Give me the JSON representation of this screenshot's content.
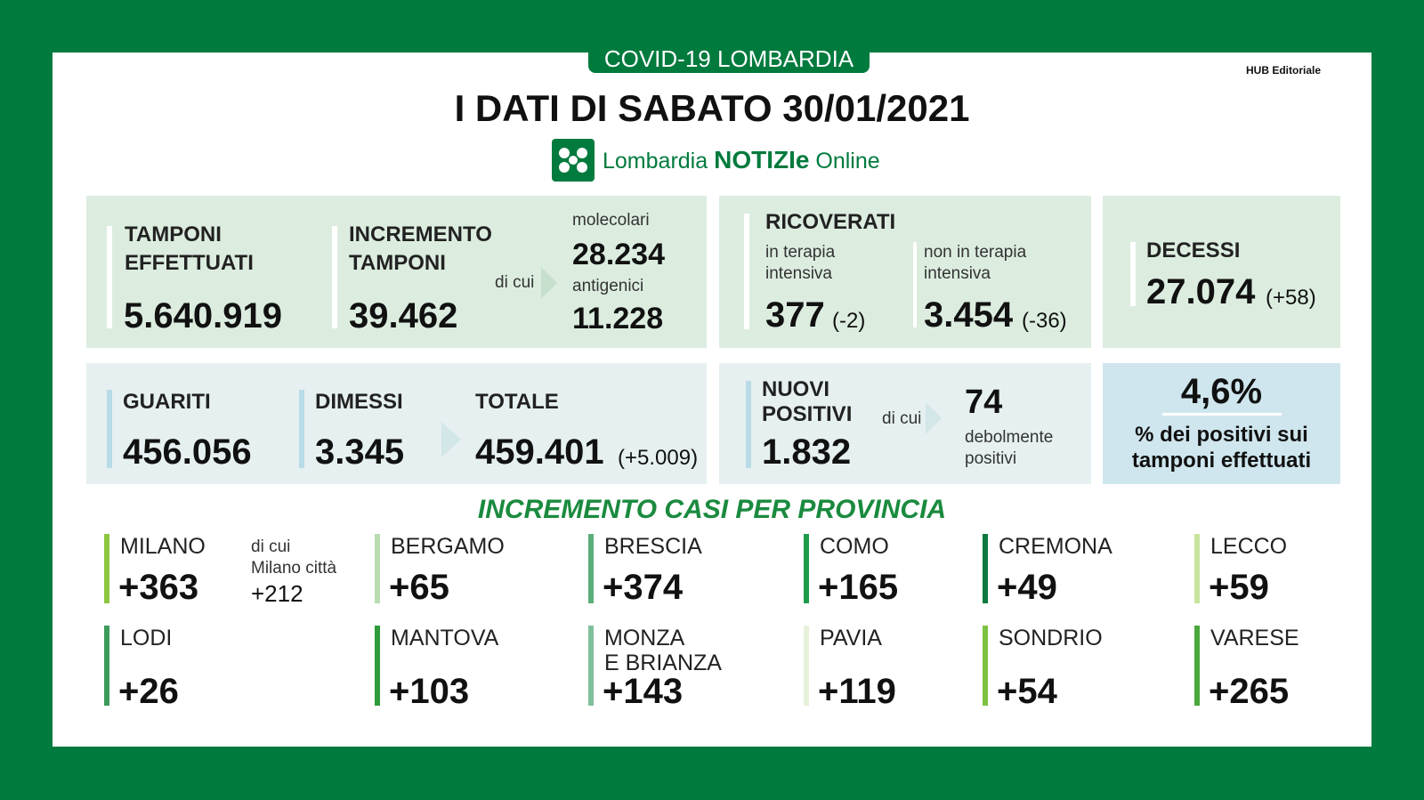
{
  "header": {
    "badge": "COVID-19 LOMBARDIA",
    "title": "I DATI DI SABATO 30/01/2021",
    "credit": "HUB Editoriale",
    "logo": {
      "brand": "Lombardia",
      "notizie": "NOTIZIe",
      "online": "Online"
    }
  },
  "tamponi": {
    "label": [
      "TAMPONI",
      "EFFETTUATI"
    ],
    "value": "5.640.919"
  },
  "incremento": {
    "label": [
      "INCREMENTO",
      "TAMPONI"
    ],
    "value": "39.462",
    "di_cui": "di cui",
    "molecolari_label": "molecolari",
    "molecolari": "28.234",
    "antigenici_label": "antigenici",
    "antigenici": "11.228"
  },
  "ricoverati": {
    "label": "RICOVERATI",
    "terapia_intensiva": {
      "label": [
        "in terapia",
        "intensiva"
      ],
      "value": "377",
      "delta": "(-2)"
    },
    "non_terapia": {
      "label": [
        "non in terapia",
        "intensiva"
      ],
      "value": "3.454",
      "delta": "(-36)"
    }
  },
  "decessi": {
    "label": "DECESSI",
    "value": "27.074",
    "delta": "(+58)"
  },
  "guariti": {
    "label": "GUARITI",
    "value": "456.056"
  },
  "dimessi": {
    "label": "DIMESSI",
    "value": "3.345"
  },
  "totale": {
    "label": "TOTALE",
    "value": "459.401",
    "delta": "(+5.009)"
  },
  "nuovi_positivi": {
    "label": [
      "NUOVI",
      "POSITIVI"
    ],
    "value": "1.832",
    "di_cui": "di cui",
    "deboli": "74",
    "deboli_label": [
      "debolmente",
      "positivi"
    ]
  },
  "percentuale": {
    "value": "4,6%",
    "label": [
      "% dei positivi sui",
      "tamponi effettuati"
    ]
  },
  "province": {
    "title": "INCREMENTO CASI PER PROVINCIA",
    "milano_extra": {
      "label": [
        "di cui",
        "Milano città"
      ],
      "value": "+212"
    },
    "items": [
      {
        "name": "MILANO",
        "value": "+363"
      },
      {
        "name": "BERGAMO",
        "value": "+65"
      },
      {
        "name": "BRESCIA",
        "value": "+374"
      },
      {
        "name": "COMO",
        "value": "+165"
      },
      {
        "name": "CREMONA",
        "value": "+49"
      },
      {
        "name": "LECCO",
        "value": "+59"
      },
      {
        "name": "LODI",
        "value": "+26"
      },
      {
        "name": "MANTOVA",
        "value": "+103"
      },
      {
        "name": "MONZA\nE BRIANZA",
        "value": "+143"
      },
      {
        "name": "PAVIA",
        "value": "+119"
      },
      {
        "name": "SONDRIO",
        "value": "+54"
      },
      {
        "name": "VARESE",
        "value": "+265"
      }
    ]
  }
}
